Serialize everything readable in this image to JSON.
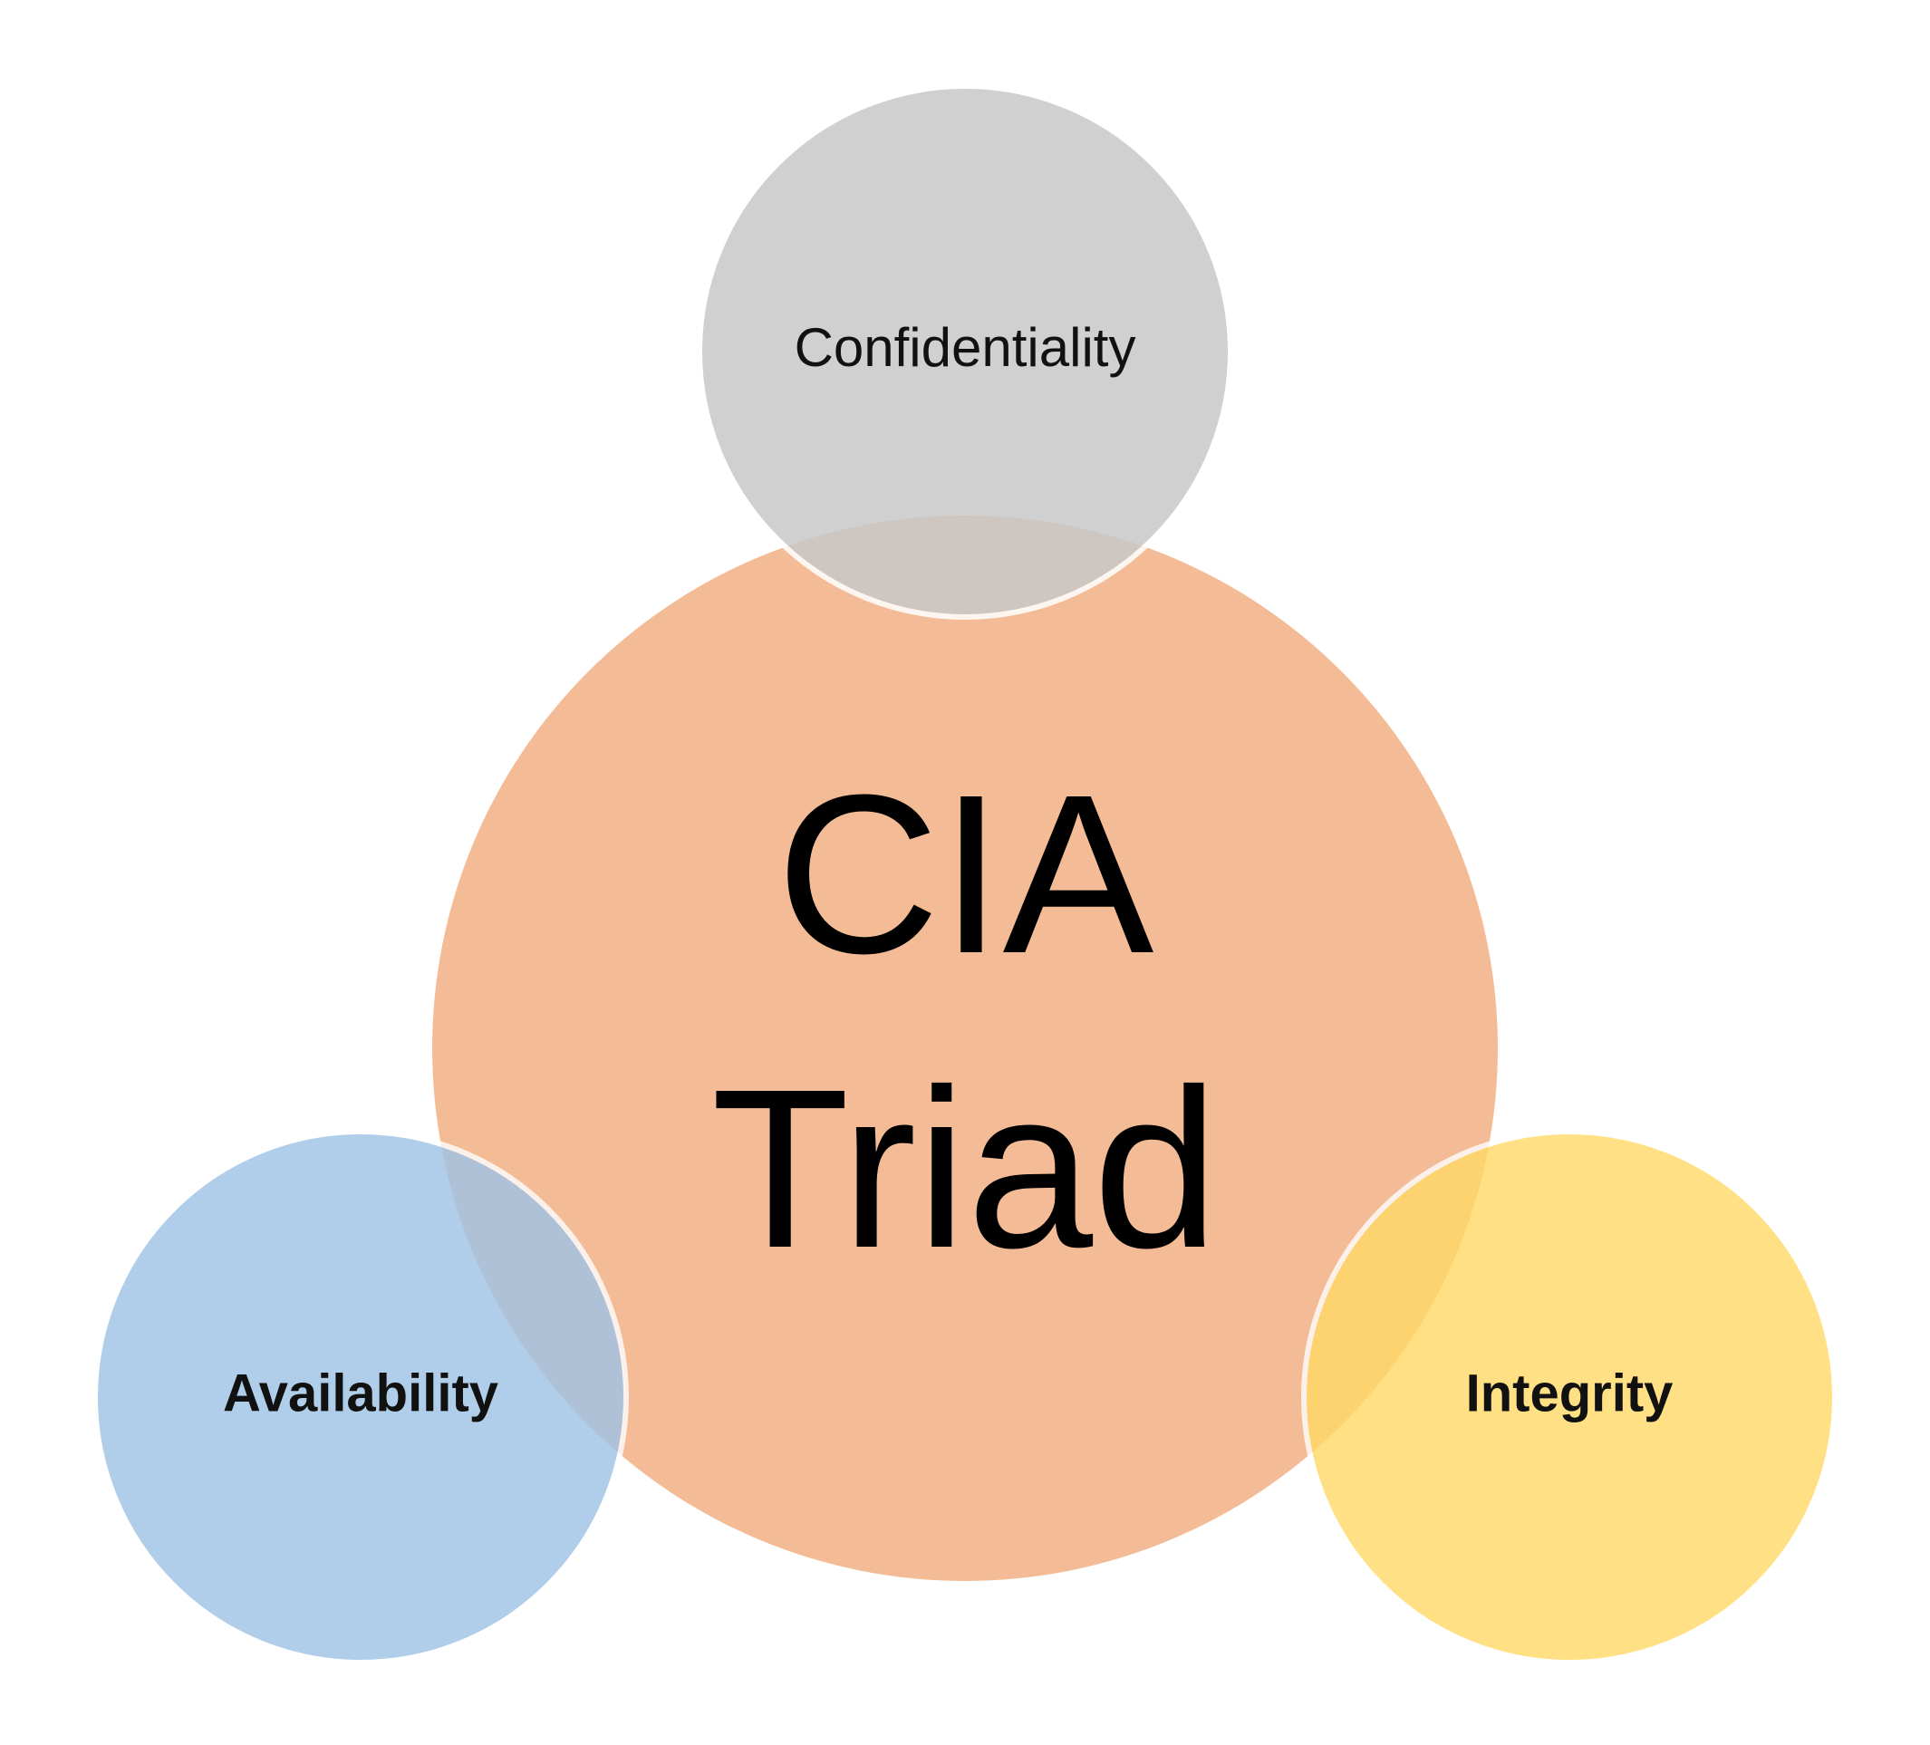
{
  "diagram": {
    "center": {
      "line1": "CIA",
      "line2": "Triad",
      "color": "#f2b084"
    },
    "top": {
      "label": "Confidentiality",
      "color": "#c8c8c8"
    },
    "left": {
      "label": "Availability",
      "color": "#9dc3e6"
    },
    "right": {
      "label": "Integrity",
      "color": "#ffd966"
    }
  }
}
